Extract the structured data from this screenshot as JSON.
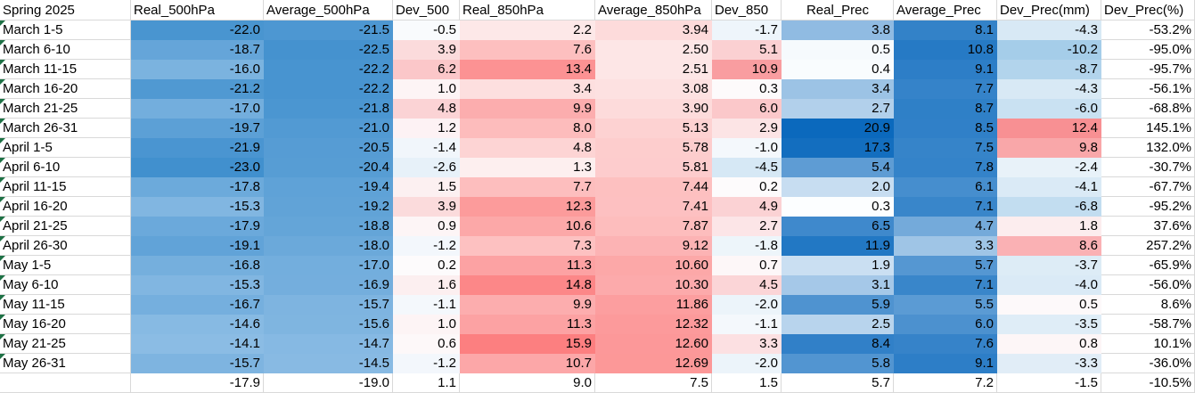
{
  "sheet": {
    "title_cell": "Spring 2025",
    "headers": [
      {
        "key": "period",
        "label": "Spring 2025"
      },
      {
        "key": "real_500",
        "label": "Real_500hPa"
      },
      {
        "key": "avg_500",
        "label": "Average_500hPa"
      },
      {
        "key": "dev_500",
        "label": "Dev_500"
      },
      {
        "key": "real_850",
        "label": "Real_850hPa"
      },
      {
        "key": "avg_850",
        "label": "Average_850hPa"
      },
      {
        "key": "dev_850",
        "label": "Dev_850"
      },
      {
        "key": "real_prec",
        "label": "Real_Prec"
      },
      {
        "key": "avg_prec",
        "label": "Average_Prec"
      },
      {
        "key": "dev_prec_mm",
        "label": "Dev_Prec(mm)"
      },
      {
        "key": "dev_prec_pct",
        "label": "Dev_Prec(%)"
      }
    ],
    "rows": [
      {
        "label": "March 1-5",
        "cells": [
          "-22.0",
          "-21.5",
          "-0.5",
          "2.2",
          "3.94",
          "-1.7",
          "3.8",
          "8.1",
          "-4.3",
          "-53.2%"
        ]
      },
      {
        "label": "March 6-10",
        "cells": [
          "-18.7",
          "-22.5",
          "3.9",
          "7.6",
          "2.50",
          "5.1",
          "0.5",
          "10.8",
          "-10.2",
          "-95.0%"
        ]
      },
      {
        "label": "March 11-15",
        "cells": [
          "-16.0",
          "-22.2",
          "6.2",
          "13.4",
          "2.51",
          "10.9",
          "0.4",
          "9.1",
          "-8.7",
          "-95.7%"
        ]
      },
      {
        "label": "March 16-20",
        "cells": [
          "-21.2",
          "-22.2",
          "1.0",
          "3.4",
          "3.08",
          "0.3",
          "3.4",
          "7.7",
          "-4.3",
          "-56.1%"
        ]
      },
      {
        "label": "March 21-25",
        "cells": [
          "-17.0",
          "-21.8",
          "4.8",
          "9.9",
          "3.90",
          "6.0",
          "2.7",
          "8.7",
          "-6.0",
          "-68.8%"
        ]
      },
      {
        "label": "March 26-31",
        "cells": [
          "-19.7",
          "-21.0",
          "1.2",
          "8.0",
          "5.13",
          "2.9",
          "20.9",
          "8.5",
          "12.4",
          "145.1%"
        ]
      },
      {
        "label": "April 1-5",
        "cells": [
          "-21.9",
          "-20.5",
          "-1.4",
          "4.8",
          "5.78",
          "-1.0",
          "17.3",
          "7.5",
          "9.8",
          "132.0%"
        ]
      },
      {
        "label": "April 6-10",
        "cells": [
          "-23.0",
          "-20.4",
          "-2.6",
          "1.3",
          "5.81",
          "-4.5",
          "5.4",
          "7.8",
          "-2.4",
          "-30.7%"
        ]
      },
      {
        "label": "April 11-15",
        "cells": [
          "-17.8",
          "-19.4",
          "1.5",
          "7.7",
          "7.44",
          "0.2",
          "2.0",
          "6.1",
          "-4.1",
          "-67.7%"
        ]
      },
      {
        "label": "April 16-20",
        "cells": [
          "-15.3",
          "-19.2",
          "3.9",
          "12.3",
          "7.41",
          "4.9",
          "0.3",
          "7.1",
          "-6.8",
          "-95.2%"
        ]
      },
      {
        "label": "April 21-25",
        "cells": [
          "-17.9",
          "-18.8",
          "0.9",
          "10.6",
          "7.87",
          "2.7",
          "6.5",
          "4.7",
          "1.8",
          "37.6%"
        ]
      },
      {
        "label": "April 26-30",
        "cells": [
          "-19.1",
          "-18.0",
          "-1.2",
          "7.3",
          "9.12",
          "-1.8",
          "11.9",
          "3.3",
          "8.6",
          "257.2%"
        ]
      },
      {
        "label": "May 1-5",
        "cells": [
          "-16.8",
          "-17.0",
          "0.2",
          "11.3",
          "10.60",
          "0.7",
          "1.9",
          "5.7",
          "-3.7",
          "-65.9%"
        ]
      },
      {
        "label": "May 6-10",
        "cells": [
          "-15.3",
          "-16.9",
          "1.6",
          "14.8",
          "10.30",
          "4.5",
          "3.1",
          "7.1",
          "-4.0",
          "-56.0%"
        ]
      },
      {
        "label": "May 11-15",
        "cells": [
          "-16.7",
          "-15.7",
          "-1.1",
          "9.9",
          "11.86",
          "-2.0",
          "5.9",
          "5.5",
          "0.5",
          "8.6%"
        ]
      },
      {
        "label": "May 16-20",
        "cells": [
          "-14.6",
          "-15.6",
          "1.0",
          "11.3",
          "12.32",
          "-1.1",
          "2.5",
          "6.0",
          "-3.5",
          "-58.7%"
        ]
      },
      {
        "label": "May 21-25",
        "cells": [
          "-14.1",
          "-14.7",
          "0.6",
          "15.9",
          "12.60",
          "3.3",
          "8.4",
          "7.6",
          "0.8",
          "10.1%"
        ]
      },
      {
        "label": "May 26-31",
        "cells": [
          "-15.7",
          "-14.5",
          "-1.2",
          "10.7",
          "12.69",
          "-2.0",
          "5.8",
          "9.1",
          "-3.3",
          "-36.0%"
        ]
      }
    ],
    "summary_row": {
      "label": "",
      "cells": [
        "-17.9",
        "-19.0",
        "1.1",
        "9.0",
        "7.5",
        "1.5",
        "5.7",
        "7.2",
        "-1.5",
        "-10.5%"
      ]
    },
    "column_scales": [
      "none",
      "blue500",
      "blue500",
      "dev",
      "red850",
      "red850",
      "dev",
      "prec",
      "prec",
      "dev",
      "none"
    ],
    "scales": {
      "blue500": {
        "stops": [
          [
            -23.0,
            "#4190CE"
          ],
          [
            -14.1,
            "#8BBCE4"
          ]
        ]
      },
      "red850": {
        "stops": [
          [
            1.3,
            "#FDEFEF"
          ],
          [
            15.9,
            "#FC7F80"
          ]
        ]
      },
      "dev": {
        "stops": [
          [
            -10.2,
            "#A5CDE9"
          ],
          [
            0,
            "#FDFDFE"
          ],
          [
            12.4,
            "#F89093"
          ]
        ]
      },
      "prec": {
        "stops": [
          [
            0.3,
            "#FCFEFF"
          ],
          [
            6.05,
            "#4A90CF"
          ],
          [
            20.9,
            "#0B69BD"
          ]
        ],
        "ease_last": "sqrt"
      }
    },
    "colors": {
      "gridline": "#D9D9D9",
      "text": "#000000",
      "background": "#FFFFFF",
      "error_indicator_green": "#1E7145"
    }
  }
}
